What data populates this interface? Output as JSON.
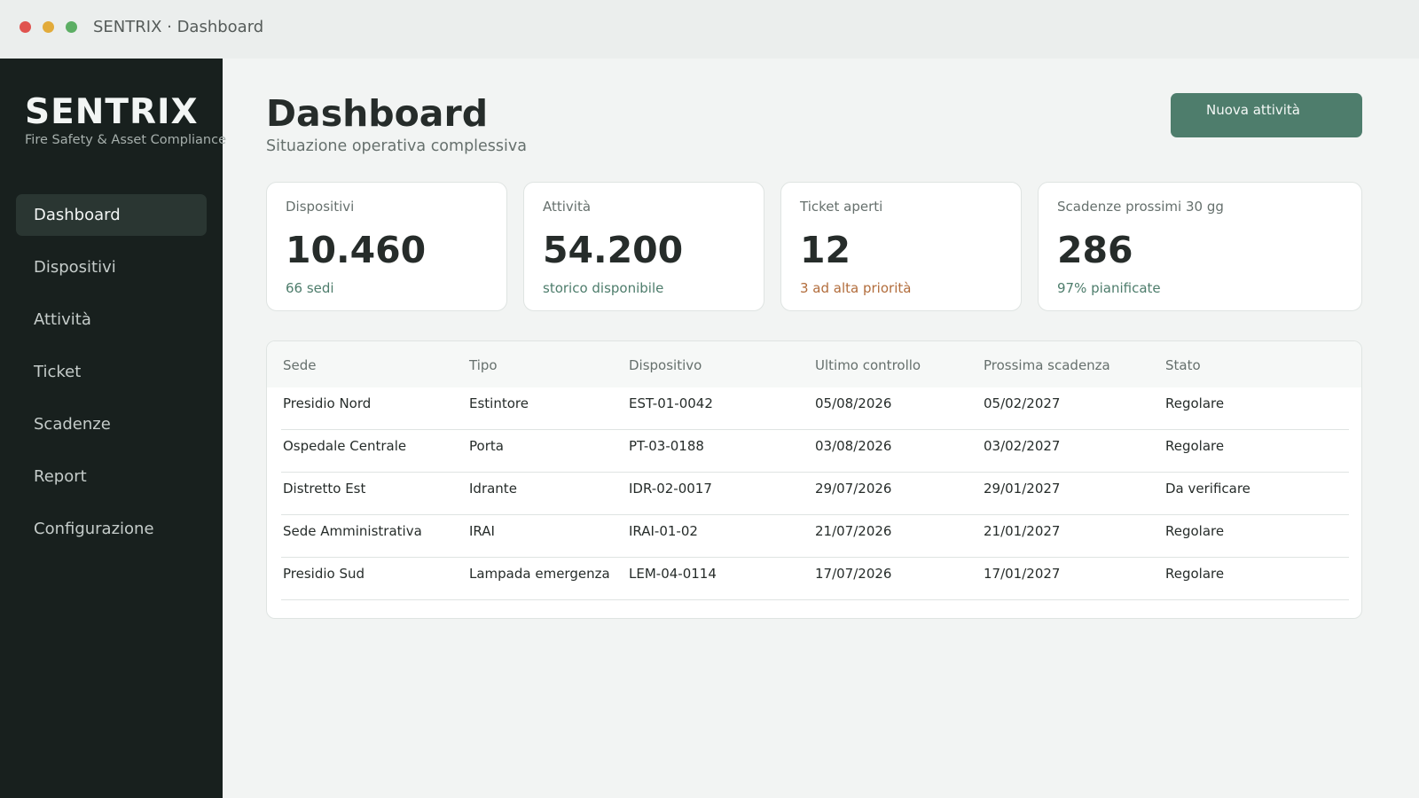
{
  "window": {
    "title": "SENTRIX · Dashboard"
  },
  "sidebar": {
    "brand": "SENTRIX",
    "tagline": "Fire Safety & Asset Compliance",
    "items": [
      {
        "label": "Dashboard",
        "active": true
      },
      {
        "label": "Dispositivi"
      },
      {
        "label": "Attività"
      },
      {
        "label": "Ticket"
      },
      {
        "label": "Scadenze"
      },
      {
        "label": "Report"
      },
      {
        "label": "Configurazione"
      }
    ]
  },
  "header": {
    "title": "Dashboard",
    "subtitle": "Situazione operativa complessiva",
    "primary_action": "Nuova attività"
  },
  "stats": [
    {
      "label": "Dispositivi",
      "value": "10.460",
      "note": "66 sedi"
    },
    {
      "label": "Attività",
      "value": "54.200",
      "note": "storico disponibile"
    },
    {
      "label": "Ticket aperti",
      "value": "12",
      "note": "3 ad alta priorità"
    },
    {
      "label": "Scadenze prossimi 30 gg",
      "value": "286",
      "note": "97% pianificate"
    }
  ],
  "table": {
    "columns": [
      "Sede",
      "Tipo",
      "Dispositivo",
      "Ultimo controllo",
      "Prossima scadenza",
      "Stato"
    ],
    "rows": [
      [
        "Presidio Nord",
        "Estintore",
        "EST-01-0042",
        "05/08/2026",
        "05/02/2027",
        "Regolare"
      ],
      [
        "Ospedale Centrale",
        "Porta",
        "PT-03-0188",
        "03/08/2026",
        "03/02/2027",
        "Regolare"
      ],
      [
        "Distretto Est",
        "Idrante",
        "IDR-02-0017",
        "29/07/2026",
        "29/01/2027",
        "Da verificare"
      ],
      [
        "Sede Amministrativa",
        "IRAI",
        "IRAI-01-02",
        "21/07/2026",
        "21/01/2027",
        "Regolare"
      ],
      [
        "Presidio Sud",
        "Lampada emergenza",
        "LEM-04-0114",
        "17/07/2026",
        "17/01/2027",
        "Regolare"
      ]
    ]
  },
  "colors": {
    "accent": "#4e7d6c",
    "sidebar_bg": "#18201e",
    "warning": "#b26d3c"
  }
}
